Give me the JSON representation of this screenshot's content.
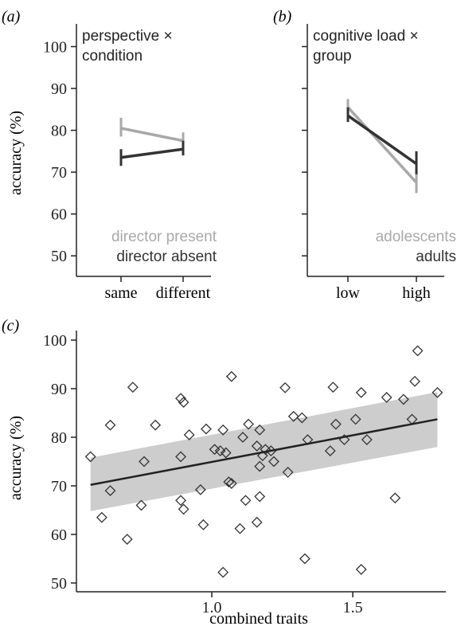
{
  "colors": {
    "director_present": "#a9a9a9",
    "director_absent": "#333333",
    "adolescents": "#a9a9a9",
    "adults": "#333333",
    "axis": "#222222",
    "ci_band": "#c8c8c8"
  },
  "chart_data": [
    {
      "type": "line",
      "panel_label": "(a)",
      "title": "perspective ×\ncondition",
      "title_lines": [
        "perspective ×",
        "condition"
      ],
      "ylabel": "accuracy (%)",
      "categories": [
        "same",
        "different"
      ],
      "ylim": [
        47,
        102
      ],
      "yticks": [
        50,
        60,
        70,
        80,
        90,
        100
      ],
      "series": [
        {
          "name": "director present",
          "values": [
            80.5,
            77.5
          ],
          "err_low": [
            78.5,
            75.5
          ],
          "err_high": [
            83,
            79.5
          ],
          "color_key": "director_present"
        },
        {
          "name": "director absent",
          "values": [
            73.5,
            75.5
          ],
          "err_low": [
            71.5,
            74
          ],
          "err_high": [
            75.5,
            77.5
          ],
          "color_key": "director_absent"
        }
      ],
      "legend_placement": "bottom-right"
    },
    {
      "type": "line",
      "panel_label": "(b)",
      "title": "cognitive load ×\ngroup",
      "title_lines": [
        "cognitive load ×",
        "group"
      ],
      "ylabel": "",
      "categories": [
        "low",
        "high"
      ],
      "ylim": [
        47,
        102
      ],
      "yticks": [
        50,
        60,
        70,
        80,
        90,
        100
      ],
      "series": [
        {
          "name": "adolescents",
          "values": [
            85.5,
            67.5
          ],
          "err_low": [
            83,
            65
          ],
          "err_high": [
            87.5,
            70
          ],
          "color_key": "adolescents"
        },
        {
          "name": "adults",
          "values": [
            83.5,
            72
          ],
          "err_low": [
            82,
            69.5
          ],
          "err_high": [
            85.5,
            75
          ],
          "color_key": "adults"
        }
      ],
      "legend_placement": "bottom-right"
    },
    {
      "type": "scatter",
      "panel_label": "(c)",
      "xlabel": "combined traits",
      "ylabel": "accuracy (%)",
      "xlim": [
        0.52,
        1.83
      ],
      "ylim": [
        50,
        100
      ],
      "xticks": [
        1.0,
        1.5
      ],
      "xtick_labels": [
        "1.0",
        "1.5"
      ],
      "yticks": [
        50,
        60,
        70,
        80,
        90,
        100
      ],
      "points": [
        [
          0.57,
          76
        ],
        [
          0.61,
          63.5
        ],
        [
          0.64,
          69
        ],
        [
          0.64,
          82.5
        ],
        [
          0.7,
          59
        ],
        [
          0.72,
          90.3
        ],
        [
          0.75,
          66
        ],
        [
          0.76,
          75
        ],
        [
          0.8,
          82.5
        ],
        [
          0.89,
          88
        ],
        [
          0.89,
          67
        ],
        [
          0.89,
          76
        ],
        [
          0.9,
          87.2
        ],
        [
          0.9,
          65.2
        ],
        [
          0.92,
          80.5
        ],
        [
          0.96,
          69.2
        ],
        [
          0.97,
          62
        ],
        [
          0.98,
          81.7
        ],
        [
          1.01,
          77.5
        ],
        [
          1.03,
          77.2
        ],
        [
          1.04,
          52.2
        ],
        [
          1.04,
          81.5
        ],
        [
          1.05,
          76.8
        ],
        [
          1.06,
          70.8
        ],
        [
          1.07,
          70.5
        ],
        [
          1.07,
          92.5
        ],
        [
          1.1,
          61.2
        ],
        [
          1.11,
          80
        ],
        [
          1.12,
          67
        ],
        [
          1.13,
          82.7
        ],
        [
          1.16,
          78.2
        ],
        [
          1.16,
          62.5
        ],
        [
          1.17,
          81.5
        ],
        [
          1.17,
          74
        ],
        [
          1.17,
          67.8
        ],
        [
          1.18,
          76.2
        ],
        [
          1.19,
          77.5
        ],
        [
          1.21,
          77.2
        ],
        [
          1.22,
          75
        ],
        [
          1.26,
          90.2
        ],
        [
          1.27,
          72.8
        ],
        [
          1.29,
          84.3
        ],
        [
          1.32,
          84
        ],
        [
          1.33,
          55
        ],
        [
          1.34,
          79.5
        ],
        [
          1.42,
          77.2
        ],
        [
          1.43,
          90.3
        ],
        [
          1.44,
          82.7
        ],
        [
          1.47,
          79.5
        ],
        [
          1.51,
          83.7
        ],
        [
          1.53,
          89.2
        ],
        [
          1.53,
          52.8
        ],
        [
          1.55,
          79.5
        ],
        [
          1.62,
          88.2
        ],
        [
          1.65,
          67.5
        ],
        [
          1.68,
          87.8
        ],
        [
          1.71,
          83.7
        ],
        [
          1.72,
          91.5
        ],
        [
          1.73,
          97.8
        ],
        [
          1.8,
          89.2
        ]
      ],
      "fit_line": {
        "x": [
          0.57,
          1.8
        ],
        "y": [
          70.2,
          83.7
        ]
      },
      "ci_band": {
        "x": [
          0.57,
          1.8
        ],
        "lower": [
          64.8,
          78
        ],
        "upper": [
          75.8,
          89.3
        ]
      }
    }
  ]
}
